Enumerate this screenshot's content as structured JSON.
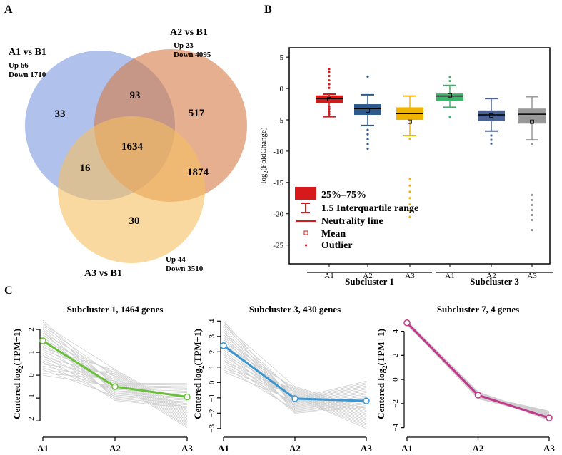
{
  "panels": {
    "a": "A",
    "b": "B",
    "c": "C"
  },
  "venn": {
    "sets": [
      {
        "name": "A1 vs B1",
        "up": "Up 66",
        "down": "Down 1710",
        "color": "#7b97e0"
      },
      {
        "name": "A2 vs B1",
        "up": "Up 23",
        "down": "Down 4095",
        "color": "#d57a45"
      },
      {
        "name": "A3 vs B1",
        "up": "Up 44",
        "down": "Down 3510",
        "color": "#f6c060"
      }
    ],
    "regions": {
      "a1_only": "33",
      "a2_only": "517",
      "a3_only": "30",
      "a1_a2": "93",
      "a1_a3": "16",
      "a2_a3": "1874",
      "all": "1634"
    }
  },
  "chart_data": [
    {
      "type": "box",
      "title": "",
      "xlabel": "",
      "ylabel": "log2(FoldChange)",
      "ylim": [
        -28,
        6.5
      ],
      "yticks": [
        "5",
        "0",
        "-5",
        "-10",
        "-15",
        "-20",
        "-25"
      ],
      "groups": [
        {
          "name": "Subcluster 1",
          "labels": [
            "A1",
            "A2",
            "A3"
          ]
        },
        {
          "name": "Subcluster 3",
          "labels": [
            "A1",
            "A2",
            "A3"
          ]
        }
      ],
      "boxes": [
        {
          "group": "Subcluster 1",
          "label": "A1",
          "color": "#d7191c",
          "whisker_low": -4.5,
          "q1": -2.3,
          "median": -1.6,
          "q3": -1.1,
          "whisker_high": -0.9,
          "mean": -1.7,
          "outliers_high": [
            0.1,
            0.7,
            1.3,
            2.0,
            2.6,
            3.1
          ],
          "outliers_low": [
            -2.9,
            -3.3,
            -3.7,
            -4.1
          ]
        },
        {
          "group": "Subcluster 1",
          "label": "A2",
          "color": "#2c5a8c",
          "whisker_low": -5.9,
          "q1": -4.2,
          "median": -3.2,
          "q3": -2.5,
          "whisker_high": -1.0,
          "mean": -3.5,
          "outliers_high": [
            1.9
          ],
          "outliers_low": [
            -6.6,
            -7.3,
            -8.1,
            -8.9,
            -9.6
          ]
        },
        {
          "group": "Subcluster 1",
          "label": "A3",
          "color": "#f0b400",
          "whisker_low": -7.5,
          "q1": -5.0,
          "median": -4.0,
          "q3": -3.0,
          "whisker_high": -1.2,
          "mean": -5.3,
          "outliers_high": [],
          "outliers_low": [
            -8.0,
            -14.5,
            -15.5,
            -16.5,
            -17.5,
            -18.5,
            -19.5,
            -20.5
          ]
        },
        {
          "group": "Subcluster 3",
          "label": "A1",
          "color": "#3db36b",
          "whisker_low": -3.0,
          "q1": -2.0,
          "median": -1.2,
          "q3": -0.8,
          "whisker_high": 0.5,
          "mean": -1.1,
          "outliers_high": [
            1.2,
            1.8
          ],
          "outliers_low": [
            -4.5
          ]
        },
        {
          "group": "Subcluster 3",
          "label": "A2",
          "color": "#4a6394",
          "whisker_low": -6.8,
          "q1": -5.2,
          "median": -4.2,
          "q3": -3.5,
          "whisker_high": -1.6,
          "mean": -4.3,
          "outliers_high": [],
          "outliers_low": [
            -7.5,
            -8.2,
            -8.8
          ]
        },
        {
          "group": "Subcluster 3",
          "label": "A3",
          "color": "#999999",
          "whisker_low": -8.2,
          "q1": -5.6,
          "median": -4.1,
          "q3": -3.2,
          "whisker_high": -1.3,
          "mean": -5.3,
          "outliers_high": [],
          "outliers_low": [
            -8.9,
            -17.0,
            -17.8,
            -18.6,
            -19.4,
            -20.2,
            -21.0,
            -22.6
          ]
        }
      ],
      "legend": {
        "box": "25%–75%",
        "whisker": "1.5 Interquartile range",
        "line": "Neutrality  line",
        "mean": "Mean",
        "outlier": "Outlier"
      }
    },
    {
      "type": "line",
      "title": "Subcluster 1, 1464 genes",
      "xlabel": "",
      "ylabel": "Centered log2(TPM+1)",
      "categories": [
        "A1",
        "A2",
        "A3"
      ],
      "ylim": [
        -2.4,
        2.5
      ],
      "yticks": [
        -2,
        -1,
        0,
        1,
        2
      ],
      "ytick_labels": [
        "−2",
        "−1",
        "0",
        "1",
        "2"
      ],
      "values": [
        1.5,
        -0.5,
        -0.95
      ],
      "color": "#6abf3b",
      "band": {
        "A1": [
          0.0,
          2.4
        ],
        "A2": [
          -1.1,
          0.3
        ],
        "A3": [
          -2.3,
          -0.3
        ]
      }
    },
    {
      "type": "line",
      "title": "Subcluster 3, 430 genes",
      "xlabel": "",
      "ylabel": "Centered log2(TPM+1)",
      "categories": [
        "A1",
        "A2",
        "A3"
      ],
      "ylim": [
        -3.1,
        4.2
      ],
      "yticks": [
        -3,
        -2,
        -1,
        0,
        1,
        2,
        3,
        4
      ],
      "ytick_labels": [
        "−3",
        "−2",
        "−1",
        "0",
        "1",
        "2",
        "3",
        "4"
      ],
      "values": [
        2.4,
        -1.05,
        -1.2
      ],
      "color": "#3a95d0",
      "band": {
        "A1": [
          0.7,
          4.0
        ],
        "A2": [
          -2.0,
          -0.2
        ],
        "A3": [
          -3.0,
          0.2
        ]
      }
    },
    {
      "type": "line",
      "title": "Subcluster 7, 4 genes",
      "xlabel": "",
      "ylabel": "Centered log2(TPM+1)",
      "categories": [
        "A1",
        "A2",
        "A3"
      ],
      "ylim": [
        -4.2,
        5.1
      ],
      "yticks": [
        -4,
        -2,
        0,
        2,
        4
      ],
      "ytick_labels": [
        "−4",
        "−2",
        "0",
        "2",
        "4"
      ],
      "values": [
        4.7,
        -1.3,
        -3.2
      ],
      "color": "#c2388b",
      "band": {
        "A1": [
          4.5,
          4.9
        ],
        "A2": [
          -1.6,
          -1.0
        ],
        "A3": [
          -3.4,
          -2.6
        ]
      }
    }
  ]
}
